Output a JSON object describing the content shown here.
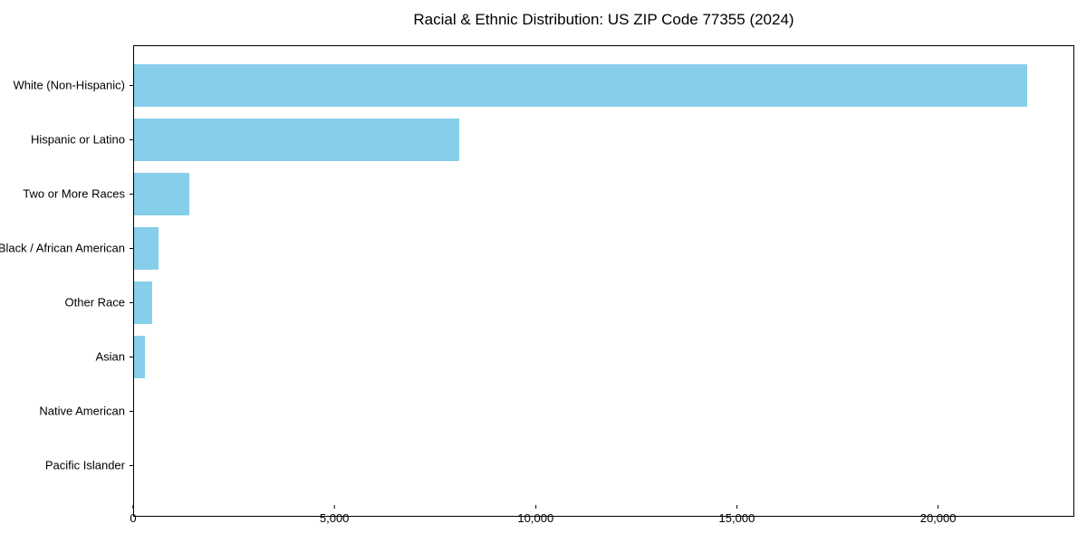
{
  "colors": {
    "bar": "#87CEEB",
    "axis": "#000000",
    "background": "#FFFFFF",
    "text": "#000000"
  },
  "chart_data": {
    "type": "bar",
    "orientation": "horizontal",
    "title": "Racial & Ethnic Distribution: US ZIP Code 77355 (2024)",
    "xlabel": "",
    "ylabel": "",
    "categories": [
      "White (Non-Hispanic)",
      "Hispanic or Latino",
      "Two or More Races",
      "Black / African American",
      "Other Race",
      "Asian",
      "Native American",
      "Pacific Islander"
    ],
    "values": [
      22200,
      8070,
      1380,
      610,
      440,
      270,
      0,
      0
    ],
    "bar_color": "#87CEEB",
    "xlim": [
      0,
      23340
    ],
    "xticks": [
      {
        "value": 0,
        "label": "0"
      },
      {
        "value": 5000,
        "label": "5,000"
      },
      {
        "value": 10000,
        "label": "10,000"
      },
      {
        "value": 15000,
        "label": "15,000"
      },
      {
        "value": 20000,
        "label": "20,000"
      }
    ],
    "grid": false,
    "legend": null
  }
}
